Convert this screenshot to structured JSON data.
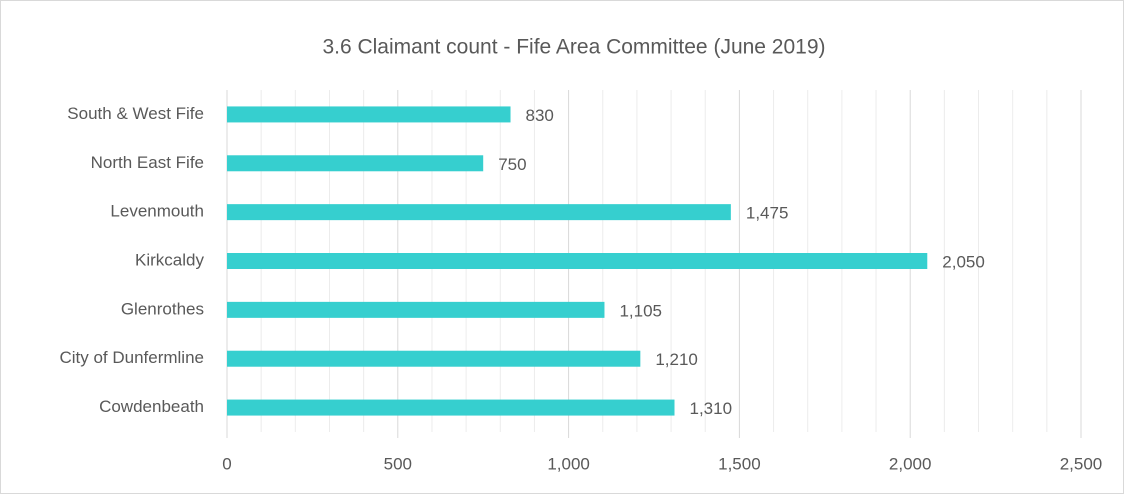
{
  "chart_data": {
    "type": "bar",
    "orientation": "horizontal",
    "title": "3.6 Claimant count - Fife Area Committee (June 2019)",
    "categories": [
      "South & West Fife",
      "North East Fife",
      "Levenmouth",
      "Kirkcaldy",
      "Glenrothes",
      "City of Dunfermline",
      "Cowdenbeath"
    ],
    "values": [
      830,
      750,
      1475,
      2050,
      1105,
      1210,
      1310
    ],
    "value_labels": [
      "830",
      "750",
      "1,475",
      "2,050",
      "1,105",
      "1,210",
      "1,310"
    ],
    "color": "#36cfcf",
    "xlim": [
      0,
      2500
    ],
    "xticks": [
      0,
      500,
      {
        "value": 1000,
        "label": "1,000"
      },
      {
        "value": 1500,
        "label": "1,500"
      },
      {
        "value": 2000,
        "label": "2,000"
      },
      {
        "value": 2500,
        "label": "2,500"
      }
    ],
    "grid": true,
    "minor_grid": true
  }
}
